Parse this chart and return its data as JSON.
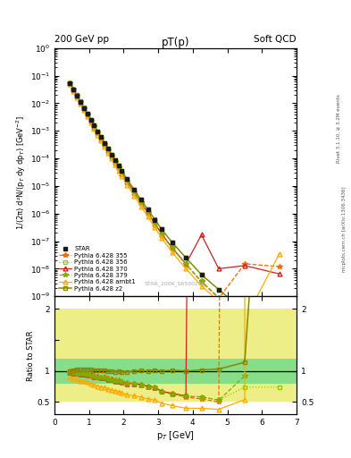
{
  "title_top_left": "200 GeV pp",
  "title_top_right": "Soft QCD",
  "plot_title": "pT(p)",
  "xlabel": "p$_T$ [GeV]",
  "ylabel_main": "1/(2π) d²N/(p$_T$ dy dp$_T$) [GeV$^{-2}$]",
  "ylabel_ratio": "Ratio to STAR",
  "watermark": "STAR_2006_S6500200",
  "right_label_top": "Rivet 3.1.10, ≥ 3.2M events",
  "right_label_bot": "mcplots.cern.ch [arXiv:1306.3436]",
  "star_x": [
    0.45,
    0.55,
    0.65,
    0.75,
    0.85,
    0.95,
    1.05,
    1.15,
    1.25,
    1.35,
    1.45,
    1.55,
    1.65,
    1.75,
    1.85,
    1.95,
    2.1,
    2.3,
    2.5,
    2.7,
    2.9,
    3.1,
    3.4,
    3.8,
    4.25,
    4.75,
    5.5,
    6.5
  ],
  "star_y": [
    0.055,
    0.032,
    0.019,
    0.0115,
    0.0068,
    0.0041,
    0.0025,
    0.00155,
    0.00095,
    0.00059,
    0.00036,
    0.000225,
    0.00014,
    8.8e-05,
    5.5e-05,
    3.5e-05,
    1.8e-05,
    7.5e-06,
    3.2e-06,
    1.4e-06,
    6e-07,
    2.7e-07,
    9e-08,
    2.5e-08,
    6e-09,
    1.7e-09,
    2.5e-10,
    2.5e-11
  ],
  "star_yerr": [
    0.002,
    0.0012,
    0.0007,
    0.0004,
    0.00025,
    0.00015,
    9e-05,
    5.5e-05,
    3.3e-05,
    2e-05,
    1.2e-05,
    7.5e-06,
    4.6e-06,
    2.9e-06,
    1.8e-06,
    1.1e-06,
    5.5e-07,
    2.3e-07,
    9.5e-08,
    4e-08,
    1.7e-08,
    7.5e-09,
    2.5e-09,
    6.5e-10,
    1.5e-10,
    4.5e-11,
    7e-12,
    7e-13
  ],
  "p355_x": [
    0.45,
    0.55,
    0.65,
    0.75,
    0.85,
    0.95,
    1.05,
    1.15,
    1.25,
    1.35,
    1.45,
    1.55,
    1.65,
    1.75,
    1.85,
    1.95,
    2.1,
    2.3,
    2.5,
    2.7,
    2.9,
    3.1,
    3.4,
    3.8,
    4.25,
    4.75,
    5.5,
    6.5
  ],
  "p355_y": [
    0.055,
    0.0315,
    0.0185,
    0.011,
    0.0065,
    0.0039,
    0.00235,
    0.00143,
    0.00087,
    0.00053,
    0.000325,
    0.000198,
    0.000122,
    7.5e-05,
    4.65e-05,
    2.9e-05,
    1.45e-05,
    6e-06,
    2.5e-06,
    1.05e-06,
    4.4e-07,
    1.8e-07,
    5.7e-08,
    1.45e-08,
    3.3e-09,
    8.5e-10,
    1.5e-08,
    1.2e-08
  ],
  "p356_x": [
    0.45,
    0.55,
    0.65,
    0.75,
    0.85,
    0.95,
    1.05,
    1.15,
    1.25,
    1.35,
    1.45,
    1.55,
    1.65,
    1.75,
    1.85,
    1.95,
    2.1,
    2.3,
    2.5,
    2.7,
    2.9,
    3.1,
    3.4,
    3.8,
    4.25,
    4.75,
    5.5,
    6.5
  ],
  "p356_y": [
    0.054,
    0.031,
    0.0182,
    0.0109,
    0.00645,
    0.00385,
    0.00232,
    0.00141,
    0.000855,
    0.000525,
    0.00032,
    0.000195,
    0.00012,
    7.38e-05,
    4.6e-05,
    2.88e-05,
    1.43e-05,
    5.95e-06,
    2.48e-06,
    1.05e-06,
    4.4e-07,
    1.8e-07,
    5.7e-08,
    1.5e-08,
    3.5e-09,
    9e-10,
    1.85e-10,
    1.85e-11
  ],
  "p370_x": [
    0.45,
    0.55,
    0.65,
    0.75,
    0.85,
    0.95,
    1.05,
    1.15,
    1.25,
    1.35,
    1.45,
    1.55,
    1.65,
    1.75,
    1.85,
    1.95,
    2.1,
    2.3,
    2.5,
    2.7,
    2.9,
    3.1,
    3.4,
    3.8,
    4.25,
    4.75,
    5.5,
    6.5
  ],
  "p370_y": [
    0.054,
    0.031,
    0.0183,
    0.011,
    0.00645,
    0.00387,
    0.00233,
    0.00142,
    0.00086,
    0.000527,
    0.000322,
    0.000196,
    0.000121,
    7.4e-05,
    4.62e-05,
    2.89e-05,
    1.44e-05,
    5.97e-06,
    2.5e-06,
    1.06e-06,
    4.42e-07,
    1.82e-07,
    5.75e-08,
    1.5e-08,
    1.7e-07,
    1e-08,
    1.3e-08,
    6.5e-09
  ],
  "p379_x": [
    0.45,
    0.55,
    0.65,
    0.75,
    0.85,
    0.95,
    1.05,
    1.15,
    1.25,
    1.35,
    1.45,
    1.55,
    1.65,
    1.75,
    1.85,
    1.95,
    2.1,
    2.3,
    2.5,
    2.7,
    2.9,
    3.1,
    3.4,
    3.8,
    4.25,
    4.75,
    5.5
  ],
  "p379_y": [
    0.054,
    0.031,
    0.0182,
    0.0109,
    0.00645,
    0.00386,
    0.00232,
    0.00141,
    0.000856,
    0.000524,
    0.00032,
    0.000195,
    0.00012,
    7.36e-05,
    4.59e-05,
    2.87e-05,
    1.43e-05,
    5.93e-06,
    2.47e-06,
    1.04e-06,
    4.38e-07,
    1.79e-07,
    5.65e-08,
    1.48e-08,
    3.5e-09,
    9e-10,
    2.3e-10
  ],
  "pambt1_x": [
    0.45,
    0.55,
    0.65,
    0.75,
    0.85,
    0.95,
    1.05,
    1.15,
    1.25,
    1.35,
    1.45,
    1.55,
    1.65,
    1.75,
    1.85,
    1.95,
    2.1,
    2.3,
    2.5,
    2.7,
    2.9,
    3.1,
    3.4,
    3.8,
    4.25,
    4.75,
    5.5,
    6.5
  ],
  "pambt1_y": [
    0.0495,
    0.0282,
    0.0164,
    0.0097,
    0.00565,
    0.00335,
    0.00199,
    0.0012,
    0.00072,
    0.000437,
    0.000264,
    0.000159,
    9.7e-05,
    5.92e-05,
    3.65e-05,
    2.27e-05,
    1.11e-05,
    4.5e-06,
    1.85e-06,
    7.7e-07,
    3.2e-07,
    1.3e-07,
    4e-08,
    1e-08,
    2.4e-09,
    6.5e-10,
    1.35e-10,
    3.5e-08
  ],
  "pz2_x": [
    0.45,
    0.55,
    0.65,
    0.75,
    0.85,
    0.95,
    1.05,
    1.15,
    1.25,
    1.35,
    1.45,
    1.55,
    1.65,
    1.75,
    1.85,
    1.95,
    2.1,
    2.3,
    2.5,
    2.7,
    2.9,
    3.1,
    3.4,
    3.8,
    4.25,
    4.75,
    5.5,
    6.5
  ],
  "pz2_y": [
    0.055,
    0.0325,
    0.0195,
    0.0117,
    0.00695,
    0.0042,
    0.00255,
    0.00157,
    0.00096,
    0.000595,
    0.000365,
    0.000224,
    0.000139,
    8.65e-05,
    5.45e-05,
    3.45e-05,
    1.77e-05,
    7.5e-06,
    3.22e-06,
    1.4e-06,
    6.1e-07,
    2.7e-07,
    9.1e-08,
    2.5e-08,
    6.1e-09,
    1.75e-09,
    2.85e-10,
    2.3e-10
  ],
  "color_star": "#1a1a1a",
  "color_355": "#ff6600",
  "color_356": "#99cc00",
  "color_370": "#cc2222",
  "color_379": "#88aa00",
  "color_ambt1": "#ffaa00",
  "color_z2": "#888800",
  "band_green_lo": 0.8,
  "band_green_hi": 1.2,
  "band_yellow_lo": 0.5,
  "band_yellow_hi": 2.0,
  "band_green_color": "#88dd88",
  "band_yellow_color": "#eeee88",
  "xlim": [
    0.0,
    7.0
  ],
  "ylim_main": [
    1e-09,
    1.0
  ],
  "ylim_ratio": [
    0.3,
    2.2
  ],
  "ratio_yticks": [
    0.5,
    1.0,
    1.5,
    2.0
  ],
  "ratio_yticklabels": [
    "0.5",
    "1",
    "",
    "2"
  ]
}
